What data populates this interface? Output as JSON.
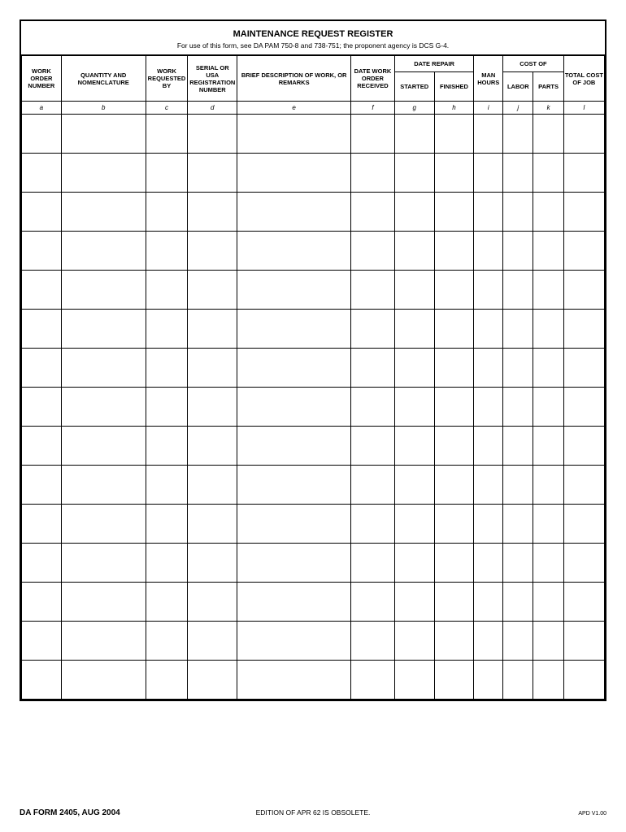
{
  "header": {
    "title": "MAINTENANCE REQUEST REGISTER",
    "subtitle": "For use of this form, see DA PAM 750-8 and 738-751; the proponent agency is DCS G-4."
  },
  "table": {
    "group_headers": {
      "date_repair": "DATE REPAIR",
      "cost_of": "COST OF"
    },
    "columns": [
      {
        "key": "a",
        "label": "WORK ORDER NUMBER",
        "letter": "a"
      },
      {
        "key": "b",
        "label": "QUANTITY AND NOMENCLATURE",
        "letter": "b"
      },
      {
        "key": "c",
        "label": "WORK REQUESTED BY",
        "letter": "c"
      },
      {
        "key": "d",
        "label": "SERIAL OR USA REGISTRATION NUMBER",
        "letter": "d"
      },
      {
        "key": "e",
        "label": "BRIEF DESCRIPTION OF WORK,  OR REMARKS",
        "letter": "e"
      },
      {
        "key": "f",
        "label": "DATE WORK ORDER RECEIVED",
        "letter": "f"
      },
      {
        "key": "g",
        "label": "STARTED",
        "letter": "g"
      },
      {
        "key": "h",
        "label": "FINISHED",
        "letter": "h"
      },
      {
        "key": "i",
        "label": "MAN HOURS",
        "letter": "i"
      },
      {
        "key": "j",
        "label": "LABOR",
        "letter": "j"
      },
      {
        "key": "k",
        "label": "PARTS",
        "letter": "k"
      },
      {
        "key": "l",
        "label": "TOTAL COST OF JOB",
        "letter": "l"
      }
    ],
    "num_data_rows": 15
  },
  "footer": {
    "left": "DA FORM 2405, AUG 2004",
    "center": "EDITION OF APR 62 IS OBSOLETE.",
    "right": "APD V1.00"
  }
}
